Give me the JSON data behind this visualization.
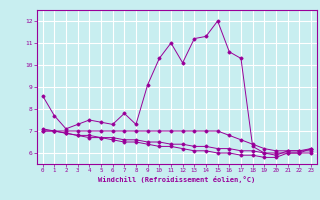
{
  "xlabel": "Windchill (Refroidissement éolien,°C)",
  "background_color": "#c8eef0",
  "grid_color": "#ffffff",
  "line_color": "#990099",
  "xlim": [
    -0.5,
    23.5
  ],
  "ylim": [
    5.5,
    12.5
  ],
  "yticks": [
    6,
    7,
    8,
    9,
    10,
    11,
    12
  ],
  "xticks": [
    0,
    1,
    2,
    3,
    4,
    5,
    6,
    7,
    8,
    9,
    10,
    11,
    12,
    13,
    14,
    15,
    16,
    17,
    18,
    19,
    20,
    21,
    22,
    23
  ],
  "series1": {
    "x": [
      0,
      1,
      2,
      3,
      4,
      5,
      6,
      7,
      8,
      9,
      10,
      11,
      12,
      13,
      14,
      15,
      16,
      17,
      18,
      19,
      20,
      21,
      22,
      23
    ],
    "y": [
      8.6,
      7.7,
      7.1,
      7.3,
      7.5,
      7.4,
      7.3,
      7.8,
      7.3,
      9.1,
      10.3,
      11.0,
      10.1,
      11.2,
      11.3,
      12.0,
      10.6,
      10.3,
      6.3,
      6.0,
      5.9,
      6.1,
      6.1,
      6.2
    ]
  },
  "series2": {
    "x": [
      0,
      1,
      2,
      3,
      4,
      5,
      6,
      7,
      8,
      9,
      10,
      11,
      12,
      13,
      14,
      15,
      16,
      17,
      18,
      19,
      20,
      21,
      22,
      23
    ],
    "y": [
      7.0,
      7.0,
      7.0,
      7.0,
      7.0,
      7.0,
      7.0,
      7.0,
      7.0,
      7.0,
      7.0,
      7.0,
      7.0,
      7.0,
      7.0,
      7.0,
      6.8,
      6.6,
      6.4,
      6.2,
      6.1,
      6.1,
      6.1,
      6.1
    ]
  },
  "series3": {
    "x": [
      0,
      1,
      2,
      3,
      4,
      5,
      6,
      7,
      8,
      9,
      10,
      11,
      12,
      13,
      14,
      15,
      16,
      17,
      18,
      19,
      20,
      21,
      22,
      23
    ],
    "y": [
      7.0,
      7.0,
      6.9,
      6.8,
      6.8,
      6.7,
      6.7,
      6.6,
      6.6,
      6.5,
      6.5,
      6.4,
      6.4,
      6.3,
      6.3,
      6.2,
      6.2,
      6.1,
      6.1,
      6.0,
      6.0,
      6.0,
      6.0,
      6.0
    ]
  },
  "series4": {
    "x": [
      0,
      1,
      2,
      3,
      4,
      5,
      6,
      7,
      8,
      9,
      10,
      11,
      12,
      13,
      14,
      15,
      16,
      17,
      18,
      19,
      20,
      21,
      22,
      23
    ],
    "y": [
      7.1,
      7.0,
      6.9,
      6.8,
      6.7,
      6.7,
      6.6,
      6.5,
      6.5,
      6.4,
      6.3,
      6.3,
      6.2,
      6.1,
      6.1,
      6.0,
      6.0,
      5.9,
      5.9,
      5.8,
      5.8,
      6.0,
      6.0,
      6.2
    ]
  }
}
